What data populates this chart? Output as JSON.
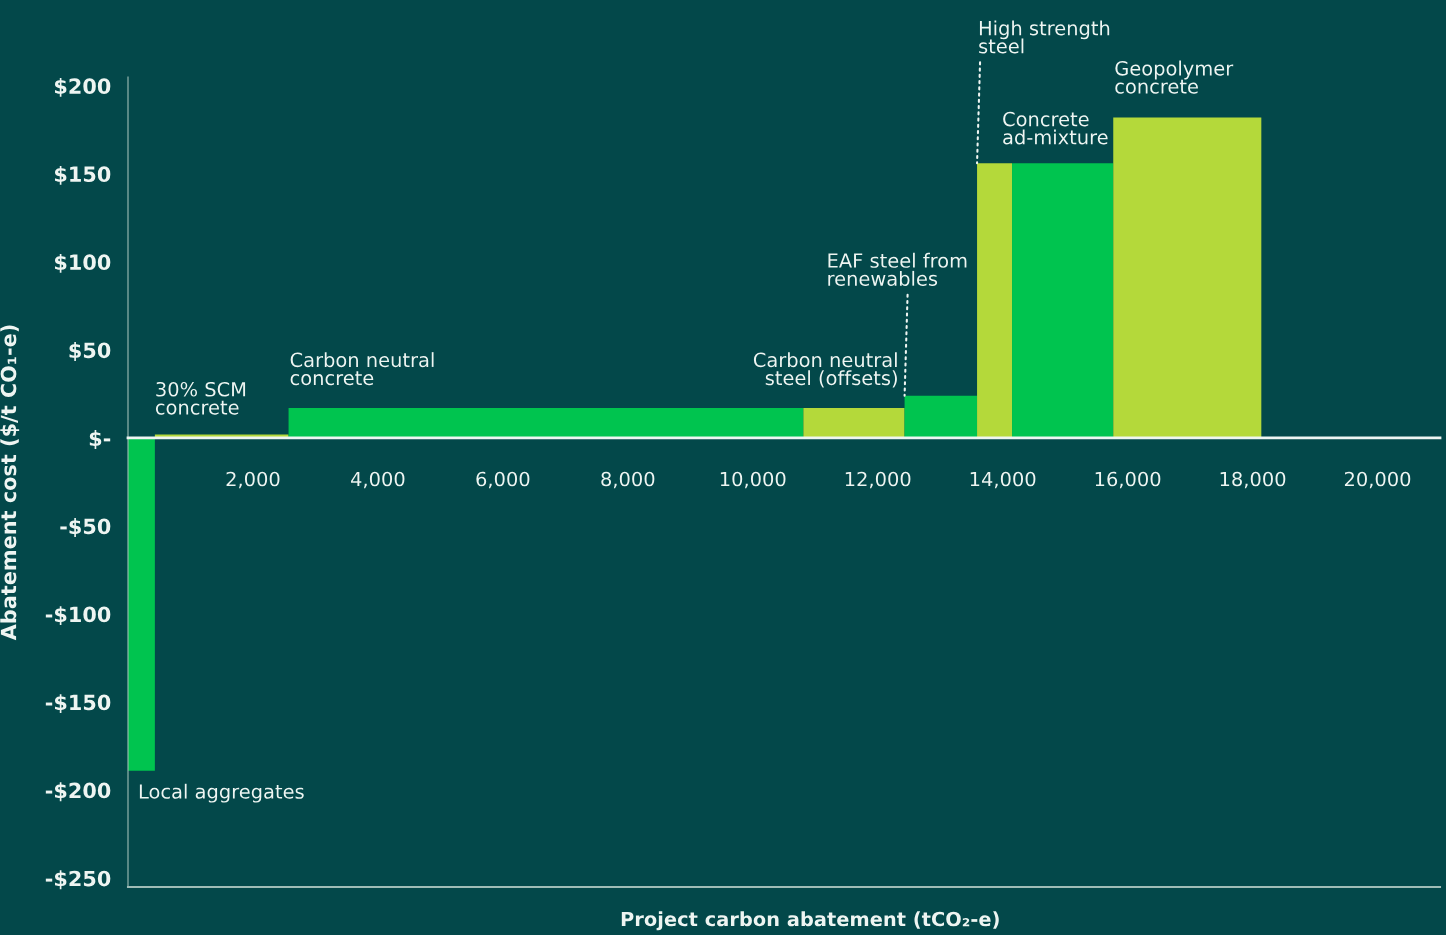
{
  "chart_data": {
    "type": "area",
    "xlabel": "Project carbon abatement (tCO₂-e)",
    "ylabel": "Abatement cost ($/t CO₁-e)",
    "series": [
      {
        "x": [
          0,
          430
        ],
        "values": [
          -189,
          -189
        ],
        "color": "#00c44f"
      },
      {
        "x": [
          430,
          2570
        ],
        "values": [
          2,
          2
        ],
        "color": "#b4d93a"
      },
      {
        "x": [
          2570,
          10810
        ],
        "values": [
          17,
          17
        ],
        "color": "#00c44f"
      },
      {
        "x": [
          10810,
          12430
        ],
        "values": [
          17,
          17
        ],
        "color": "#b4d93a"
      },
      {
        "x": [
          12430,
          13590
        ],
        "values": [
          24,
          24
        ],
        "color": "#00c44f"
      },
      {
        "x": [
          13590,
          14150
        ],
        "values": [
          156,
          156
        ],
        "color": "#b4d93a"
      },
      {
        "x": [
          14150,
          15770
        ],
        "values": [
          156,
          156
        ],
        "color": "#00c44f"
      },
      {
        "x": [
          15770,
          18140
        ],
        "values": [
          182,
          182
        ],
        "color": "#b4d93a"
      }
    ],
    "annotations": [
      "Local aggregates",
      "30% SCM\nconcrete",
      "Carbon neutral\nconcrete",
      "Carbon neutral\nsteel (offsets)",
      {
        "text": "EAF steel from\nrenewables",
        "x": 12430,
        "y": 24
      },
      {
        "text": "High strength\nsteel",
        "x": 13590,
        "y": 156
      },
      "Concrete\nad-mixture",
      "Geopolymer\nconcrete"
    ],
    "xlim": [
      0,
      21000
    ],
    "xticks": [
      {
        "value": 2000,
        "label": "2,000"
      },
      {
        "value": 4000,
        "label": "4,000"
      },
      {
        "value": 6000,
        "label": "6,000"
      },
      {
        "value": 8000,
        "label": "8,000"
      },
      {
        "value": 10000,
        "label": "10,000"
      },
      {
        "value": 12000,
        "label": "12,000"
      },
      {
        "value": 14000,
        "label": "14,000"
      },
      {
        "value": 16000,
        "label": "16,000"
      },
      {
        "value": 18000,
        "label": "18,000"
      },
      {
        "value": 20000,
        "label": "20,000"
      }
    ],
    "ylim": [
      -255,
      205
    ],
    "yticks": [
      {
        "value": -250,
        "label": "-$250"
      },
      {
        "value": -200,
        "label": "-$200"
      },
      {
        "value": -150,
        "label": "-$150"
      },
      {
        "value": -100,
        "label": "-$100"
      },
      {
        "value": -50,
        "label": "-$50"
      },
      {
        "value": 0,
        "label": "$-"
      },
      {
        "value": 50,
        "label": "$50"
      },
      {
        "value": 100,
        "label": "$100"
      },
      {
        "value": 150,
        "label": "$150"
      },
      {
        "value": 200,
        "label": "$200"
      }
    ],
    "grid": false,
    "legend": false
  }
}
